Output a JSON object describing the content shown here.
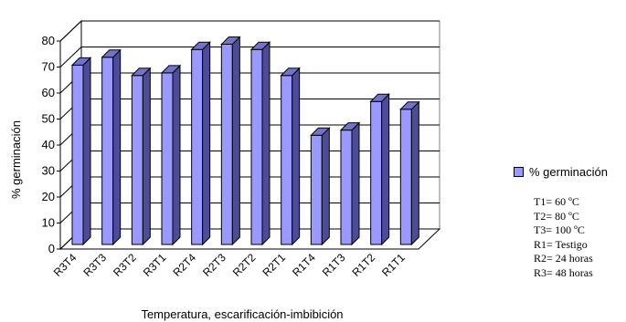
{
  "chart_data": {
    "type": "bar",
    "categories": [
      "R3T4",
      "R3T3",
      "R3T2",
      "R3T1",
      "R2T4",
      "R2T3",
      "R2T2",
      "R2T1",
      "R1T4",
      "R1T3",
      "R1T2",
      "R1T1"
    ],
    "series": [
      {
        "name": "% germinación",
        "values": [
          69,
          72,
          65,
          66,
          75,
          77,
          75,
          65,
          42,
          44,
          55,
          52
        ],
        "color": "#9999ff"
      }
    ],
    "xlabel": "Temperatura, escarificación-imbibición",
    "ylabel": "% germinación",
    "ylim": [
      0,
      80
    ],
    "yticks": [
      "0",
      "10",
      "20",
      "30",
      "40",
      "50",
      "60",
      "70",
      "80"
    ],
    "grid": true,
    "legend_position": "right",
    "style": "3d-bar"
  },
  "notes": [
    "T1= 60 ºC",
    "T2= 80 ºC",
    "T3= 100 ºC",
    "R1= Testigo",
    "R2= 24 horas",
    "R3= 48 horas"
  ]
}
